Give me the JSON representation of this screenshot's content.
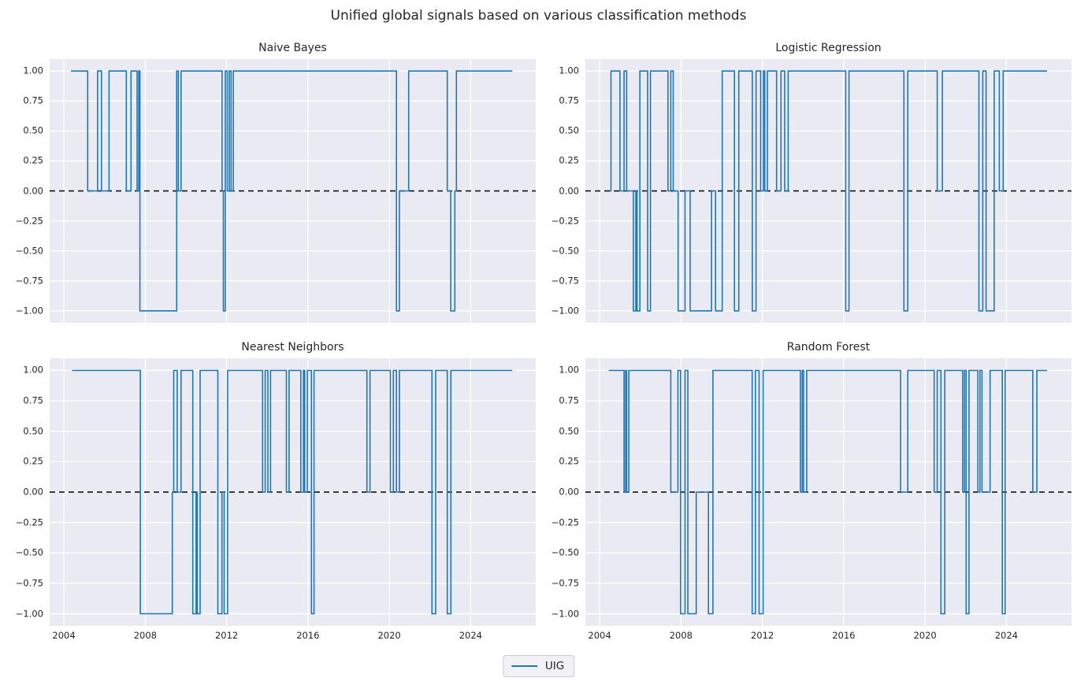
{
  "figure": {
    "title": "Unified global signals based on various classification methods",
    "background": "#ffffff",
    "axes_background": "#eaeaf2",
    "grid_color": "#ffffff",
    "line_color": "#1f77b4",
    "zero_line_color": "#000000",
    "text_color": "#262626"
  },
  "legend": {
    "label": "UIG",
    "position": "lower center"
  },
  "axis": {
    "xlim": [
      2003.3,
      2027.2
    ],
    "ylim": [
      -1.1,
      1.1
    ],
    "x_ticks": [
      2004,
      2008,
      2012,
      2016,
      2020,
      2024
    ],
    "x_tick_labels": [
      "2004",
      "2008",
      "2012",
      "2016",
      "2020",
      "2024"
    ],
    "y_ticks": [
      1.0,
      0.75,
      0.5,
      0.25,
      0.0,
      -0.25,
      -0.5,
      -0.75,
      -1.0
    ],
    "y_tick_labels": [
      "1.00",
      "0.75",
      "0.50",
      "0.25",
      "0.00",
      "−0.25",
      "−0.50",
      "−0.75",
      "−1.00"
    ],
    "grid": true
  },
  "chart_data": [
    {
      "type": "line",
      "title": "Naive Bayes",
      "series_name": "UIG",
      "line_style": "step",
      "zero_line": 0,
      "show_x_tick_labels": false,
      "x_end": 2026.05,
      "step_points": [
        [
          2004.35,
          1
        ],
        [
          2005.17,
          0
        ],
        [
          2005.66,
          1
        ],
        [
          2005.85,
          0
        ],
        [
          2006.22,
          1
        ],
        [
          2007.07,
          0
        ],
        [
          2007.3,
          1
        ],
        [
          2007.6,
          0
        ],
        [
          2007.68,
          1
        ],
        [
          2007.74,
          -1
        ],
        [
          2009.55,
          1
        ],
        [
          2009.63,
          0
        ],
        [
          2009.76,
          1
        ],
        [
          2011.78,
          0
        ],
        [
          2011.84,
          -1
        ],
        [
          2011.94,
          1
        ],
        [
          2012.03,
          0
        ],
        [
          2012.13,
          1
        ],
        [
          2012.22,
          0
        ],
        [
          2012.33,
          1
        ],
        [
          2020.35,
          -1
        ],
        [
          2020.5,
          0
        ],
        [
          2020.95,
          1
        ],
        [
          2022.85,
          0
        ],
        [
          2023.02,
          -1
        ],
        [
          2023.22,
          0
        ],
        [
          2023.3,
          1
        ]
      ]
    },
    {
      "type": "line",
      "title": "Logistic Regression",
      "series_name": "UIG",
      "line_style": "step",
      "zero_line": 0,
      "show_x_tick_labels": false,
      "x_end": 2026.0,
      "step_points": [
        [
          2004.5,
          0
        ],
        [
          2004.56,
          1
        ],
        [
          2005.0,
          0
        ],
        [
          2005.2,
          1
        ],
        [
          2005.33,
          0
        ],
        [
          2005.66,
          -1
        ],
        [
          2005.78,
          0
        ],
        [
          2005.84,
          -1
        ],
        [
          2005.98,
          1
        ],
        [
          2006.36,
          -1
        ],
        [
          2006.5,
          1
        ],
        [
          2007.36,
          0
        ],
        [
          2007.5,
          1
        ],
        [
          2007.62,
          0
        ],
        [
          2007.86,
          -1
        ],
        [
          2008.2,
          0
        ],
        [
          2008.45,
          -1
        ],
        [
          2009.5,
          0
        ],
        [
          2009.7,
          -1
        ],
        [
          2010.03,
          1
        ],
        [
          2010.63,
          -1
        ],
        [
          2010.84,
          1
        ],
        [
          2011.51,
          -1
        ],
        [
          2011.69,
          1
        ],
        [
          2011.92,
          0
        ],
        [
          2012.05,
          1
        ],
        [
          2012.12,
          0
        ],
        [
          2012.25,
          1
        ],
        [
          2012.7,
          0
        ],
        [
          2012.92,
          1
        ],
        [
          2013.1,
          0
        ],
        [
          2013.27,
          1
        ],
        [
          2016.1,
          -1
        ],
        [
          2016.26,
          1
        ],
        [
          2018.96,
          -1
        ],
        [
          2019.15,
          1
        ],
        [
          2020.6,
          0
        ],
        [
          2020.85,
          1
        ],
        [
          2022.65,
          -1
        ],
        [
          2022.84,
          1
        ],
        [
          2023.0,
          -1
        ],
        [
          2023.4,
          1
        ],
        [
          2023.65,
          0
        ],
        [
          2023.84,
          1
        ]
      ]
    },
    {
      "type": "line",
      "title": "Nearest Neighbors",
      "series_name": "UIG",
      "line_style": "step",
      "zero_line": 0,
      "show_x_tick_labels": true,
      "x_end": 2026.05,
      "step_points": [
        [
          2004.4,
          1
        ],
        [
          2007.76,
          -1
        ],
        [
          2009.33,
          0
        ],
        [
          2009.4,
          1
        ],
        [
          2009.57,
          0
        ],
        [
          2009.76,
          1
        ],
        [
          2010.34,
          -1
        ],
        [
          2010.5,
          0
        ],
        [
          2010.56,
          -1
        ],
        [
          2010.7,
          1
        ],
        [
          2011.57,
          -1
        ],
        [
          2011.77,
          0
        ],
        [
          2011.88,
          -1
        ],
        [
          2012.05,
          1
        ],
        [
          2013.77,
          0
        ],
        [
          2013.9,
          1
        ],
        [
          2014.03,
          0
        ],
        [
          2014.16,
          1
        ],
        [
          2014.94,
          0
        ],
        [
          2015.07,
          1
        ],
        [
          2015.65,
          0
        ],
        [
          2015.78,
          1
        ],
        [
          2015.84,
          0
        ],
        [
          2015.97,
          1
        ],
        [
          2016.17,
          -1
        ],
        [
          2016.3,
          1
        ],
        [
          2018.9,
          0
        ],
        [
          2019.05,
          1
        ],
        [
          2020.05,
          0
        ],
        [
          2020.2,
          1
        ],
        [
          2020.35,
          0
        ],
        [
          2020.5,
          1
        ],
        [
          2022.1,
          -1
        ],
        [
          2022.28,
          1
        ],
        [
          2022.85,
          -1
        ],
        [
          2023.03,
          1
        ]
      ]
    },
    {
      "type": "line",
      "title": "Random Forest",
      "series_name": "UIG",
      "line_style": "step",
      "zero_line": 0,
      "show_x_tick_labels": true,
      "x_end": 2026.0,
      "step_points": [
        [
          2004.45,
          1
        ],
        [
          2005.2,
          0
        ],
        [
          2005.28,
          1
        ],
        [
          2005.33,
          0
        ],
        [
          2005.44,
          1
        ],
        [
          2007.5,
          0
        ],
        [
          2007.85,
          1
        ],
        [
          2007.98,
          -1
        ],
        [
          2008.2,
          1
        ],
        [
          2008.34,
          -1
        ],
        [
          2008.75,
          0
        ],
        [
          2009.35,
          -1
        ],
        [
          2009.57,
          1
        ],
        [
          2011.5,
          -1
        ],
        [
          2011.66,
          1
        ],
        [
          2011.84,
          -1
        ],
        [
          2012.04,
          1
        ],
        [
          2013.87,
          0
        ],
        [
          2013.96,
          1
        ],
        [
          2014.03,
          0
        ],
        [
          2014.18,
          1
        ],
        [
          2018.8,
          0
        ],
        [
          2019.15,
          1
        ],
        [
          2020.45,
          0
        ],
        [
          2020.6,
          1
        ],
        [
          2020.78,
          -1
        ],
        [
          2020.97,
          1
        ],
        [
          2021.85,
          0
        ],
        [
          2021.94,
          1
        ],
        [
          2022.02,
          -1
        ],
        [
          2022.16,
          1
        ],
        [
          2022.6,
          0
        ],
        [
          2022.7,
          1
        ],
        [
          2022.8,
          0
        ],
        [
          2023.2,
          1
        ],
        [
          2023.8,
          -1
        ],
        [
          2023.94,
          1
        ],
        [
          2025.3,
          0
        ],
        [
          2025.5,
          1
        ]
      ]
    }
  ]
}
